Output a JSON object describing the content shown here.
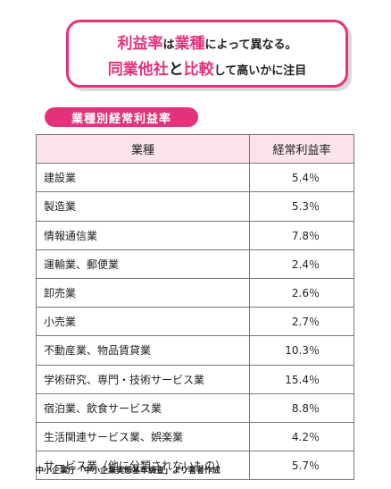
{
  "callout": {
    "line1": [
      "利益率",
      "は",
      "業種",
      "によって異なる。"
    ],
    "line2": [
      "同業他社",
      "と",
      "比較",
      "して高いかに注目"
    ]
  },
  "table_label": "業種別経常利益率",
  "table": {
    "headers": [
      "業種",
      "経常利益率"
    ],
    "rows": [
      {
        "industry": "建設業",
        "rate": "5.4％"
      },
      {
        "industry": "製造業",
        "rate": "5.3％"
      },
      {
        "industry": "情報通信業",
        "rate": "7.8％"
      },
      {
        "industry": "運輸業、郵便業",
        "rate": "2.4％"
      },
      {
        "industry": "卸売業",
        "rate": "2.6％"
      },
      {
        "industry": "小売業",
        "rate": "2.7％"
      },
      {
        "industry": "不動産業、物品賃貸業",
        "rate": "10.3％"
      },
      {
        "industry": "学術研究、専門・技術サービス業",
        "rate": "15.4％"
      },
      {
        "industry": "宿泊業、飲食サービス業",
        "rate": "8.8％"
      },
      {
        "industry": "生活関連サービス業、娯楽業",
        "rate": "4.2％"
      },
      {
        "industry": "サービス業（他に分類されないもの）",
        "rate": "5.7％"
      }
    ]
  },
  "source": "中小企業庁「中小企業実態基本調査」より著者作成",
  "colors": {
    "accent": "#e5317a",
    "header_bg": "#fbe3ec",
    "border": "#777777"
  }
}
